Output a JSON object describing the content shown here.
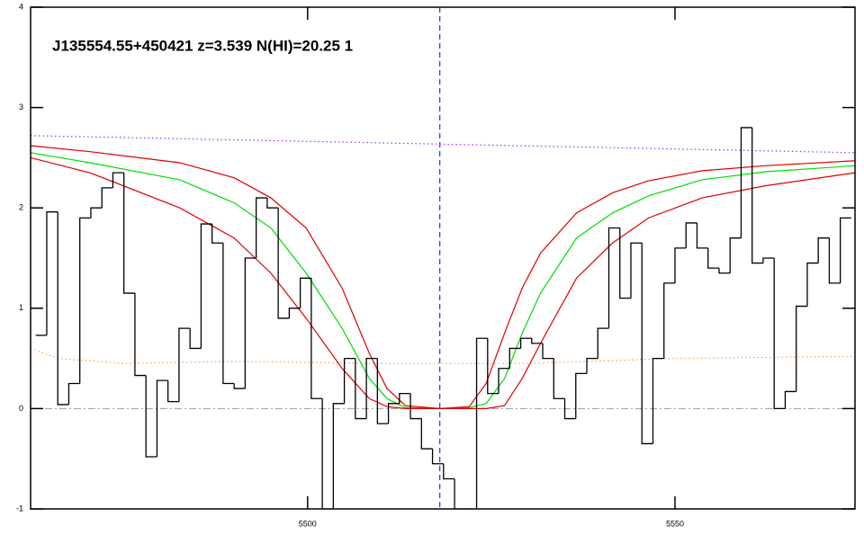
{
  "chart_data": {
    "type": "line",
    "title": "J135554.55+450421 z=3.539 N(HI)=20.25 1",
    "xlim": [
      5462.3,
      5574.5
    ],
    "ylim": [
      -1,
      4
    ],
    "xticks": [
      5500,
      5550
    ],
    "yticks": [
      -1,
      0,
      1,
      2,
      3,
      4
    ],
    "histogram": {
      "color": "#000000",
      "bins": [
        5463,
        5464.5,
        5466,
        5467.5,
        5469,
        5470.5,
        5472,
        5473.5,
        5475,
        5476.5,
        5478,
        5479.5,
        5481,
        5482.5,
        5484,
        5485.5,
        5487,
        5488.5,
        5490,
        5491.5,
        5493,
        5494.5,
        5496,
        5497.5,
        5499,
        5500.5,
        5502,
        5503.5,
        5505,
        5506.5,
        5508,
        5509.5,
        5511,
        5512.5,
        5514,
        5515.5,
        5517,
        5518.5,
        5520,
        5521.5,
        5523,
        5524.5,
        5526,
        5527.5,
        5529,
        5530.5,
        5532,
        5533.5,
        5535,
        5536.5,
        5538,
        5539.5,
        5541,
        5542.5,
        5544,
        5545.5,
        5547,
        5548.5,
        5550,
        5551.5,
        5553,
        5554.5,
        5556,
        5557.5,
        5559,
        5560.5,
        5562,
        5563.5,
        5565,
        5566.5,
        5568,
        5569.5,
        5571,
        5572.5,
        5574
      ],
      "values": [
        0.73,
        1.96,
        0.04,
        0.25,
        1.9,
        2.0,
        2.2,
        2.35,
        1.15,
        0.33,
        -0.48,
        0.28,
        0.07,
        0.8,
        0.6,
        1.84,
        1.65,
        0.25,
        0.2,
        1.5,
        2.1,
        2.0,
        0.9,
        1.0,
        1.3,
        0.1,
        -1.0,
        0.05,
        0.5,
        -0.1,
        0.5,
        -0.15,
        0.05,
        0.15,
        -0.1,
        -0.4,
        -0.55,
        -0.7,
        -1.0,
        -1.0,
        0.7,
        0.15,
        0.4,
        0.6,
        0.7,
        0.65,
        0.5,
        0.1,
        -0.1,
        0.35,
        0.5,
        0.8,
        1.8,
        1.1,
        1.65,
        -0.35,
        0.5,
        1.25,
        1.6,
        1.85,
        1.6,
        1.4,
        1.35,
        1.7,
        2.8,
        1.45,
        1.5,
        0.0,
        0.17,
        1.02,
        1.45,
        1.7,
        1.25,
        1.9
      ]
    },
    "series": [
      {
        "color": "#9b30ff",
        "dash": "dotted",
        "x": [
          5462.3,
          5574.5
        ],
        "values": [
          2.72,
          2.55
        ]
      },
      {
        "color": "#ff9a40",
        "dash": "dotted",
        "x": [
          5462.3,
          5466,
          5475,
          5490,
          5510,
          5530,
          5550,
          5574.5
        ],
        "values": [
          0.6,
          0.5,
          0.45,
          0.47,
          0.45,
          0.45,
          0.5,
          0.52
        ]
      },
      {
        "color": "#00dd00",
        "dash": "solid",
        "x": [
          5462.3,
          5470.4,
          5482.6,
          5490,
          5495,
          5499.8,
          5504.7,
          5508.4,
          5510.8,
          5513.3,
          5518,
          5522,
          5524.3,
          5526.8,
          5529.2,
          5531.7,
          5536.6,
          5541.5,
          5546.4,
          5553.7,
          5562.3,
          5574.5
        ],
        "values": [
          2.55,
          2.45,
          2.28,
          2.05,
          1.8,
          1.35,
          0.8,
          0.3,
          0.1,
          0.01,
          0,
          0.01,
          0.05,
          0.3,
          0.75,
          1.15,
          1.7,
          1.95,
          2.12,
          2.28,
          2.36,
          2.42
        ]
      },
      {
        "color": "#dd0000",
        "dash": "solid",
        "x": [
          5462.3,
          5470.4,
          5482.6,
          5490,
          5495,
          5499.8,
          5504.7,
          5508.4,
          5510.8,
          5513.3,
          5518,
          5522,
          5524.3,
          5526.8,
          5529.2,
          5531.7,
          5536.6,
          5541.5,
          5546.4,
          5553.7,
          5562.3,
          5574.5
        ],
        "values": [
          2.62,
          2.56,
          2.45,
          2.3,
          2.1,
          1.8,
          1.2,
          0.55,
          0.2,
          0.03,
          0,
          0.02,
          0.25,
          0.75,
          1.2,
          1.55,
          1.95,
          2.15,
          2.27,
          2.37,
          2.42,
          2.47
        ]
      },
      {
        "color": "#dd0000",
        "dash": "solid",
        "x": [
          5462.3,
          5470.4,
          5482.6,
          5490,
          5495,
          5499.8,
          5504.7,
          5508.4,
          5510.8,
          5513.3,
          5518,
          5522,
          5524.3,
          5526.8,
          5529.2,
          5531.7,
          5536.6,
          5541.5,
          5546.4,
          5553.7,
          5562.3,
          5574.5
        ],
        "values": [
          2.5,
          2.35,
          2.0,
          1.7,
          1.35,
          0.9,
          0.4,
          0.1,
          0.02,
          0,
          0,
          0,
          0,
          0.03,
          0.3,
          0.65,
          1.3,
          1.65,
          1.9,
          2.1,
          2.22,
          2.35
        ]
      }
    ],
    "hline": {
      "value": 0,
      "color": "#999999"
    },
    "vline": {
      "value": 5518,
      "color": "#0000cc"
    }
  }
}
